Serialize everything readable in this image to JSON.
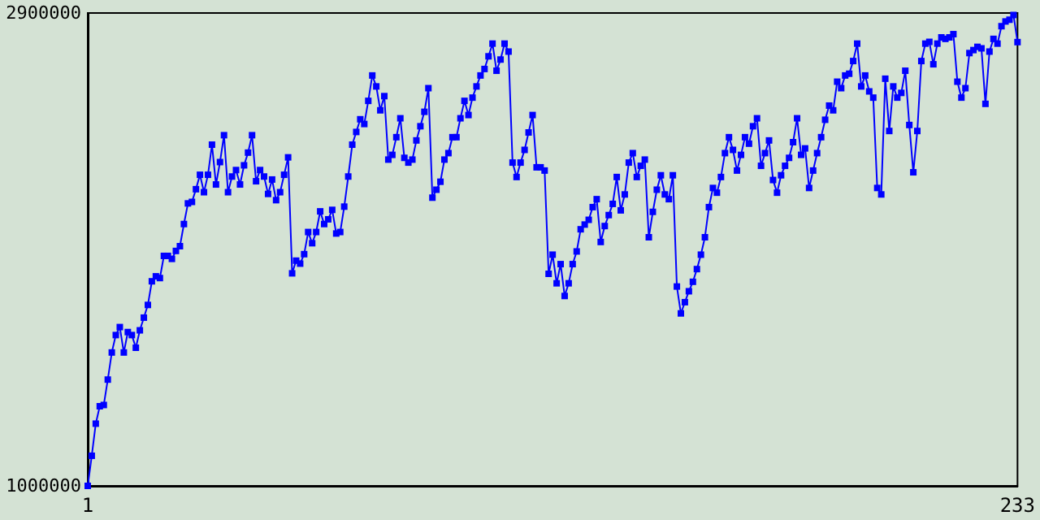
{
  "chart_data": {
    "type": "line",
    "x": [
      1,
      2,
      3,
      4,
      5,
      6,
      7,
      8,
      9,
      10,
      11,
      12,
      13,
      14,
      15,
      16,
      17,
      18,
      19,
      20,
      21,
      22,
      23,
      24,
      25,
      26,
      27,
      28,
      29,
      30,
      31,
      32,
      33,
      34,
      35,
      36,
      37,
      38,
      39,
      40,
      41,
      42,
      43,
      44,
      45,
      46,
      47,
      48,
      49,
      50,
      51,
      52,
      53,
      54,
      55,
      56,
      57,
      58,
      59,
      60,
      61,
      62,
      63,
      64,
      65,
      66,
      67,
      68,
      69,
      70,
      71,
      72,
      73,
      74,
      75,
      76,
      77,
      78,
      79,
      80,
      81,
      82,
      83,
      84,
      85,
      86,
      87,
      88,
      89,
      90,
      91,
      92,
      93,
      94,
      95,
      96,
      97,
      98,
      99,
      100,
      101,
      102,
      103,
      104,
      105,
      106,
      107,
      108,
      109,
      110,
      111,
      112,
      113,
      114,
      115,
      116,
      117,
      118,
      119,
      120,
      121,
      122,
      123,
      124,
      125,
      126,
      127,
      128,
      129,
      130,
      131,
      132,
      133,
      134,
      135,
      136,
      137,
      138,
      139,
      140,
      141,
      142,
      143,
      144,
      145,
      146,
      147,
      148,
      149,
      150,
      151,
      152,
      153,
      154,
      155,
      156,
      157,
      158,
      159,
      160,
      161,
      162,
      163,
      164,
      165,
      166,
      167,
      168,
      169,
      170,
      171,
      172,
      173,
      174,
      175,
      176,
      177,
      178,
      179,
      180,
      181,
      182,
      183,
      184,
      185,
      186,
      187,
      188,
      189,
      190,
      191,
      192,
      193,
      194,
      195,
      196,
      197,
      198,
      199,
      200,
      201,
      202,
      203,
      204,
      205,
      206,
      207,
      208,
      209,
      210,
      211,
      212,
      213,
      214,
      215,
      216,
      217,
      218,
      219,
      220,
      221,
      222,
      223,
      224,
      225,
      226,
      227,
      228,
      229,
      230,
      231,
      232,
      233
    ],
    "series": [
      {
        "color": "#0000ff",
        "values": [
          1000000,
          1121000,
          1250000,
          1320000,
          1325000,
          1427000,
          1536000,
          1606000,
          1638000,
          1536000,
          1618000,
          1606000,
          1555000,
          1625000,
          1676000,
          1727000,
          1822000,
          1842000,
          1835000,
          1924000,
          1924000,
          1912000,
          1944000,
          1963000,
          2052000,
          2135000,
          2141000,
          2192000,
          2250000,
          2180000,
          2250000,
          2371000,
          2211000,
          2301000,
          2409000,
          2180000,
          2243000,
          2269000,
          2211000,
          2288000,
          2339000,
          2409000,
          2224000,
          2269000,
          2243000,
          2173000,
          2231000,
          2148000,
          2180000,
          2250000,
          2320000,
          1854000,
          1905000,
          1893000,
          1931000,
          2020000,
          1975000,
          2020000,
          2103000,
          2052000,
          2071000,
          2109000,
          2014000,
          2020000,
          2122000,
          2243000,
          2371000,
          2422000,
          2473000,
          2454000,
          2547000,
          2649000,
          2605000,
          2509000,
          2566000,
          2311000,
          2330000,
          2401000,
          2477000,
          2318000,
          2299000,
          2311000,
          2388000,
          2445000,
          2503000,
          2598000,
          2158000,
          2190000,
          2222000,
          2311000,
          2337000,
          2401000,
          2401000,
          2477000,
          2547000,
          2490000,
          2560000,
          2605000,
          2649000,
          2675000,
          2726000,
          2777000,
          2668000,
          2713000,
          2777000,
          2745000,
          2299000,
          2241000,
          2299000,
          2350000,
          2420000,
          2490000,
          2280000,
          2280000,
          2267000,
          1852000,
          1929000,
          1814000,
          1891000,
          1763000,
          1814000,
          1891000,
          1942000,
          2031000,
          2050000,
          2069000,
          2120000,
          2152000,
          1980000,
          2044000,
          2088000,
          2133000,
          2241000,
          2107000,
          2171000,
          2299000,
          2337000,
          2241000,
          2286000,
          2311000,
          1999000,
          2101000,
          2190000,
          2248000,
          2171000,
          2152000,
          2248000,
          1801000,
          1693000,
          1738000,
          1782000,
          1820000,
          1871000,
          1929000,
          1999000,
          2120000,
          2197000,
          2178000,
          2241000,
          2337000,
          2401000,
          2350000,
          2267000,
          2330000,
          2401000,
          2375000,
          2445000,
          2477000,
          2286000,
          2337000,
          2388000,
          2229000,
          2178000,
          2248000,
          2286000,
          2318000,
          2381000,
          2477000,
          2330000,
          2356000,
          2197000,
          2267000,
          2337000,
          2401000,
          2471000,
          2528000,
          2509000,
          2624000,
          2598000,
          2649000,
          2656000,
          2707000,
          2777000,
          2605000,
          2649000,
          2585000,
          2560000,
          2197000,
          2171000,
          2636000,
          2426000,
          2605000,
          2560000,
          2579000,
          2668000,
          2450000,
          2260000,
          2426000,
          2707000,
          2777000,
          2784000,
          2694000,
          2777000,
          2802000,
          2796000,
          2802000,
          2815000,
          2624000,
          2560000,
          2598000,
          2739000,
          2751000,
          2764000,
          2758000,
          2535000,
          2745000,
          2796000,
          2777000,
          2847000,
          2866000,
          2873000,
          2892000,
          2783000
        ]
      }
    ],
    "xlim": [
      1,
      233
    ],
    "xticks": [
      1,
      233
    ],
    "ylim": [
      1000000,
      2900000
    ],
    "yticks": [
      1000000,
      2900000
    ],
    "grid": false,
    "marker": "square",
    "line_style": "solid"
  }
}
